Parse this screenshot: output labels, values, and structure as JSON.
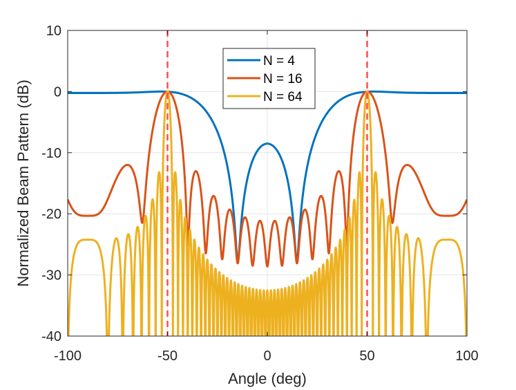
{
  "chart_data": {
    "type": "line",
    "title": "",
    "xlabel": "Angle (deg)",
    "ylabel": "Normalized Beam Pattern (dB)",
    "xlim": [
      -100,
      100
    ],
    "ylim": [
      -40,
      10
    ],
    "xticks": [
      -100,
      -50,
      0,
      50,
      100
    ],
    "yticks": [
      -40,
      -30,
      -20,
      -10,
      0,
      10
    ],
    "xtick_labels": [
      "-100",
      "-50",
      "0",
      "50",
      "100"
    ],
    "ytick_labels": [
      "-40",
      "-30",
      "-20",
      "-10",
      "0",
      "10"
    ],
    "grid": true,
    "legend_location": "top-center",
    "reference_lines": [
      {
        "x": -50,
        "style": "dashed",
        "color": "#ff4d4d"
      },
      {
        "x": 50,
        "style": "dashed",
        "color": "#ff4d4d"
      }
    ],
    "steering_angle_deg": 50,
    "element_spacing_wavelengths": 0.5,
    "floor_db": -40,
    "series": [
      {
        "name": "N = 4",
        "N": 4,
        "color": "#0072bd"
      },
      {
        "name": "N = 16",
        "N": 16,
        "color": "#d95319"
      },
      {
        "name": "N = 64",
        "N": 64,
        "color": "#edb120"
      }
    ]
  }
}
